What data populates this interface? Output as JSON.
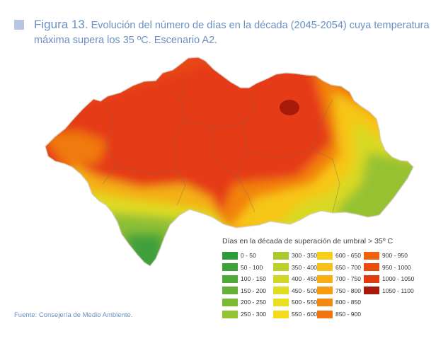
{
  "title": {
    "label": "Figura 13.",
    "text": "Evolución del número de días en la década (2045-2054) cuya temperatura máxima supera los 35 ºC. Escenario A2."
  },
  "legend": {
    "title": "Días en la década de superación de umbral > 35º C",
    "items": [
      {
        "label": "0 - 50",
        "color": "#2e9b3a"
      },
      {
        "label": "50 - 100",
        "color": "#3da23a"
      },
      {
        "label": "100 - 150",
        "color": "#4fa93a"
      },
      {
        "label": "150 - 200",
        "color": "#65b13a"
      },
      {
        "label": "200 - 250",
        "color": "#7cba36"
      },
      {
        "label": "250 - 300",
        "color": "#93c232"
      },
      {
        "label": "300 - 350",
        "color": "#a9c92e"
      },
      {
        "label": "350 - 400",
        "color": "#bdd02a"
      },
      {
        "label": "400 - 450",
        "color": "#cfd626"
      },
      {
        "label": "450 - 500",
        "color": "#dfdc22"
      },
      {
        "label": "500 - 550",
        "color": "#ece01e"
      },
      {
        "label": "550 - 600",
        "color": "#f4dc1b"
      },
      {
        "label": "600 - 650",
        "color": "#f7cf18"
      },
      {
        "label": "650 - 700",
        "color": "#f8c016"
      },
      {
        "label": "700 - 750",
        "color": "#f8ae14"
      },
      {
        "label": "750 - 800",
        "color": "#f79b12"
      },
      {
        "label": "800 - 850",
        "color": "#f58810"
      },
      {
        "label": "850 - 900",
        "color": "#f2740f"
      },
      {
        "label": "900 - 950",
        "color": "#ee610e"
      },
      {
        "label": "950 - 1000",
        "color": "#e94d0d"
      },
      {
        "label": "1000 - 1050",
        "color": "#e03b0c"
      },
      {
        "label": "1050 - 1100",
        "color": "#a81a0c"
      }
    ]
  },
  "source": "Fuente: Consejería de Medio Ambiente."
}
